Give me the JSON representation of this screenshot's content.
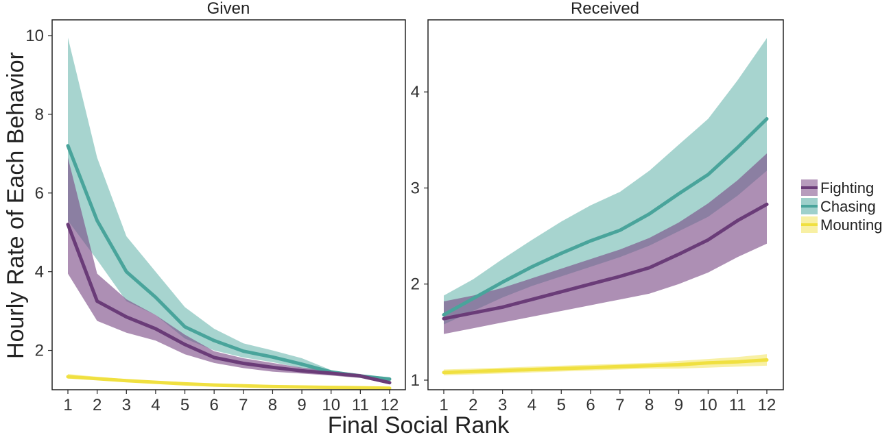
{
  "chart_data": {
    "type": "line",
    "xlabel": "Final Social Rank",
    "ylabel": "Hourly Rate of Each Behavior",
    "legend_position": "right",
    "colors": {
      "Fighting": "#7b4a86",
      "Chasing": "#4fa9a0",
      "Mounting": "#f2e45a"
    },
    "x": [
      1,
      2,
      3,
      4,
      5,
      6,
      7,
      8,
      9,
      10,
      11,
      12
    ],
    "panels": [
      {
        "title": "Given",
        "ylim": [
          1.0,
          10.4
        ],
        "yticks": [
          2,
          4,
          6,
          8,
          10
        ],
        "series": [
          {
            "name": "Chasing",
            "values": [
              7.2,
              5.3,
              4.0,
              3.35,
              2.6,
              2.25,
              1.98,
              1.83,
              1.65,
              1.45,
              1.35,
              1.27
            ],
            "lower": [
              5.3,
              4.3,
              3.25,
              2.9,
              2.3,
              2.0,
              1.82,
              1.7,
              1.55,
              1.41,
              1.3,
              1.22
            ],
            "upper": [
              9.95,
              6.9,
              4.9,
              4.0,
              3.1,
              2.55,
              2.18,
              2.0,
              1.8,
              1.5,
              1.38,
              1.32
            ]
          },
          {
            "name": "Fighting",
            "values": [
              5.2,
              3.25,
              2.85,
              2.55,
              2.15,
              1.82,
              1.67,
              1.57,
              1.48,
              1.42,
              1.35,
              1.18
            ],
            "lower": [
              3.95,
              2.75,
              2.45,
              2.25,
              1.9,
              1.68,
              1.55,
              1.46,
              1.41,
              1.36,
              1.3,
              1.14
            ],
            "upper": [
              6.9,
              3.95,
              3.3,
              2.9,
              2.4,
              1.98,
              1.8,
              1.68,
              1.56,
              1.48,
              1.4,
              1.24
            ]
          },
          {
            "name": "Mounting",
            "values": [
              1.33,
              1.28,
              1.23,
              1.19,
              1.15,
              1.12,
              1.1,
              1.08,
              1.07,
              1.06,
              1.05,
              1.04
            ],
            "lower": [
              1.28,
              1.25,
              1.2,
              1.17,
              1.13,
              1.1,
              1.08,
              1.06,
              1.05,
              1.04,
              1.03,
              1.02
            ],
            "upper": [
              1.4,
              1.33,
              1.27,
              1.22,
              1.18,
              1.15,
              1.12,
              1.1,
              1.09,
              1.08,
              1.07,
              1.06
            ]
          }
        ]
      },
      {
        "title": "Received",
        "ylim": [
          0.9,
          4.75
        ],
        "yticks": [
          1,
          2,
          3,
          4
        ],
        "series": [
          {
            "name": "Chasing",
            "values": [
              1.68,
              1.85,
              2.02,
              2.18,
              2.32,
              2.45,
              2.56,
              2.73,
              2.94,
              3.14,
              3.42,
              3.72
            ],
            "lower": [
              1.58,
              1.72,
              1.86,
              1.98,
              2.08,
              2.18,
              2.28,
              2.4,
              2.55,
              2.7,
              2.92,
              3.18
            ],
            "upper": [
              1.88,
              2.05,
              2.26,
              2.46,
              2.65,
              2.82,
              2.96,
              3.18,
              3.45,
              3.72,
              4.12,
              4.56
            ]
          },
          {
            "name": "Fighting",
            "values": [
              1.64,
              1.7,
              1.76,
              1.84,
              1.92,
              2.0,
              2.08,
              2.17,
              2.31,
              2.46,
              2.66,
              2.83
            ],
            "lower": [
              1.48,
              1.54,
              1.6,
              1.66,
              1.72,
              1.78,
              1.84,
              1.9,
              2.0,
              2.12,
              2.28,
              2.42
            ],
            "upper": [
              1.82,
              1.88,
              1.96,
              2.06,
              2.16,
              2.26,
              2.36,
              2.48,
              2.64,
              2.84,
              3.08,
              3.36
            ]
          },
          {
            "name": "Mounting",
            "values": [
              1.08,
              1.09,
              1.1,
              1.11,
              1.12,
              1.13,
              1.14,
              1.15,
              1.16,
              1.18,
              1.19,
              1.21
            ],
            "lower": [
              1.05,
              1.06,
              1.07,
              1.08,
              1.09,
              1.1,
              1.11,
              1.12,
              1.12,
              1.13,
              1.14,
              1.15
            ],
            "upper": [
              1.11,
              1.12,
              1.13,
              1.14,
              1.15,
              1.16,
              1.17,
              1.18,
              1.2,
              1.22,
              1.24,
              1.27
            ]
          }
        ]
      }
    ]
  }
}
